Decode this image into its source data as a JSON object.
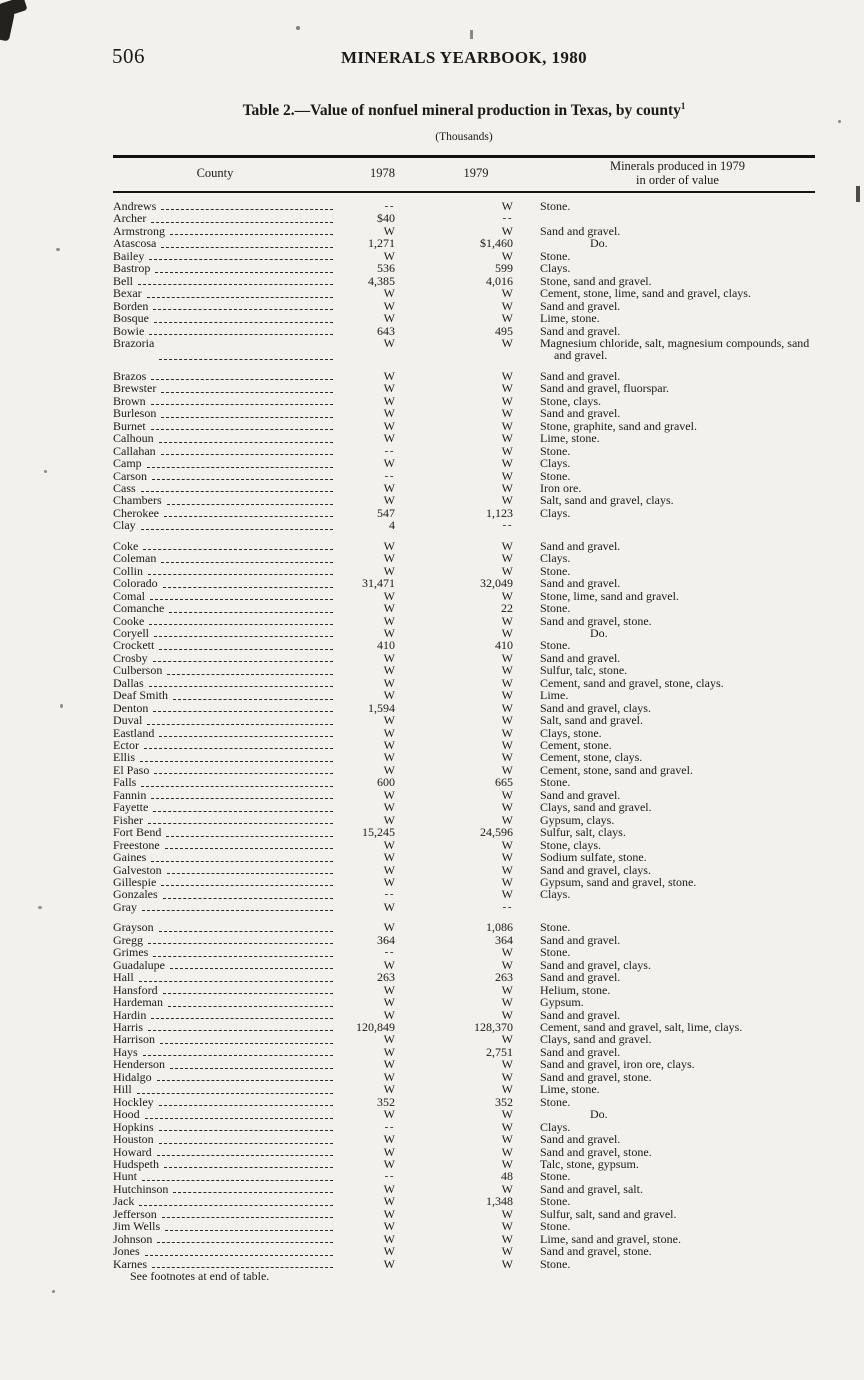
{
  "page": {
    "number": "506",
    "running_title": "MINERALS YEARBOOK, 1980",
    "footer_note": "See footnotes at end of table."
  },
  "table": {
    "title": "Table 2.—Value of nonfuel mineral production in Texas, by county",
    "title_footnote_marker": "1",
    "subtitle": "(Thousands)",
    "columns": [
      "County",
      "1978",
      "1979"
    ],
    "minerals_header": [
      "Minerals produced in 1979",
      "in order of value"
    ],
    "withheld_symbol": "W",
    "no_data_symbol": "--",
    "rows": [
      {
        "county": "Andrews",
        "y1978": "--",
        "y1979": "W",
        "minerals": "Stone."
      },
      {
        "county": "Archer",
        "y1978": "$40",
        "y1979": "--",
        "minerals": ""
      },
      {
        "county": "Armstrong",
        "y1978": "W",
        "y1979": "W",
        "minerals": "Sand and gravel."
      },
      {
        "county": "Atascosa",
        "y1978": "1,271",
        "y1979": "$1,460",
        "minerals": "Do."
      },
      {
        "county": "Bailey",
        "y1978": "W",
        "y1979": "W",
        "minerals": "Stone."
      },
      {
        "county": "Bastrop",
        "y1978": "536",
        "y1979": "599",
        "minerals": "Clays."
      },
      {
        "county": "Bell",
        "y1978": "4,385",
        "y1979": "4,016",
        "minerals": "Stone, sand and gravel."
      },
      {
        "county": "Bexar",
        "y1978": "W",
        "y1979": "W",
        "minerals": "Cement, stone, lime, sand and gravel, clays."
      },
      {
        "county": "Borden",
        "y1978": "W",
        "y1979": "W",
        "minerals": "Sand and gravel."
      },
      {
        "county": "Bosque",
        "y1978": "W",
        "y1979": "W",
        "minerals": "Lime, stone."
      },
      {
        "county": "Bowie",
        "y1978": "643",
        "y1979": "495",
        "minerals": "Sand and gravel."
      },
      {
        "county": "Brazoria",
        "y1978": "W",
        "y1979": "W",
        "minerals": "Magnesium chloride, salt, magnesium compounds, sand and gravel."
      },
      {
        "county": "Brazos",
        "y1978": "W",
        "y1979": "W",
        "minerals": "Sand and gravel.",
        "gap": true
      },
      {
        "county": "Brewster",
        "y1978": "W",
        "y1979": "W",
        "minerals": "Sand and gravel, fluorspar."
      },
      {
        "county": "Brown",
        "y1978": "W",
        "y1979": "W",
        "minerals": "Stone, clays."
      },
      {
        "county": "Burleson",
        "y1978": "W",
        "y1979": "W",
        "minerals": "Sand and gravel."
      },
      {
        "county": "Burnet",
        "y1978": "W",
        "y1979": "W",
        "minerals": "Stone, graphite, sand and gravel."
      },
      {
        "county": "Calhoun",
        "y1978": "W",
        "y1979": "W",
        "minerals": "Lime, stone."
      },
      {
        "county": "Callahan",
        "y1978": "--",
        "y1979": "W",
        "minerals": "Stone."
      },
      {
        "county": "Camp",
        "y1978": "W",
        "y1979": "W",
        "minerals": "Clays."
      },
      {
        "county": "Carson",
        "y1978": "--",
        "y1979": "W",
        "minerals": "Stone."
      },
      {
        "county": "Cass",
        "y1978": "W",
        "y1979": "W",
        "minerals": "Iron ore."
      },
      {
        "county": "Chambers",
        "y1978": "W",
        "y1979": "W",
        "minerals": "Salt, sand and gravel, clays."
      },
      {
        "county": "Cherokee",
        "y1978": "547",
        "y1979": "1,123",
        "minerals": "Clays."
      },
      {
        "county": "Clay",
        "y1978": "4",
        "y1979": "--",
        "minerals": ""
      },
      {
        "county": "Coke",
        "y1978": "W",
        "y1979": "W",
        "minerals": "Sand and gravel.",
        "gap": true
      },
      {
        "county": "Coleman",
        "y1978": "W",
        "y1979": "W",
        "minerals": "Clays."
      },
      {
        "county": "Collin",
        "y1978": "W",
        "y1979": "W",
        "minerals": "Stone."
      },
      {
        "county": "Colorado",
        "y1978": "31,471",
        "y1979": "32,049",
        "minerals": "Sand and gravel."
      },
      {
        "county": "Comal",
        "y1978": "W",
        "y1979": "W",
        "minerals": "Stone, lime, sand and gravel."
      },
      {
        "county": "Comanche",
        "y1978": "W",
        "y1979": "22",
        "minerals": "Stone."
      },
      {
        "county": "Cooke",
        "y1978": "W",
        "y1979": "W",
        "minerals": "Sand and gravel, stone."
      },
      {
        "county": "Coryell",
        "y1978": "W",
        "y1979": "W",
        "minerals": "Do."
      },
      {
        "county": "Crockett",
        "y1978": "410",
        "y1979": "410",
        "minerals": "Stone."
      },
      {
        "county": "Crosby",
        "y1978": "W",
        "y1979": "W",
        "minerals": "Sand and gravel."
      },
      {
        "county": "Culberson",
        "y1978": "W",
        "y1979": "W",
        "minerals": "Sulfur, talc, stone."
      },
      {
        "county": "Dallas",
        "y1978": "W",
        "y1979": "W",
        "minerals": "Cement, sand and gravel, stone, clays."
      },
      {
        "county": "Deaf Smith",
        "y1978": "W",
        "y1979": "W",
        "minerals": "Lime."
      },
      {
        "county": "Denton",
        "y1978": "1,594",
        "y1979": "W",
        "minerals": "Sand and gravel, clays."
      },
      {
        "county": "Duval",
        "y1978": "W",
        "y1979": "W",
        "minerals": "Salt, sand and gravel."
      },
      {
        "county": "Eastland",
        "y1978": "W",
        "y1979": "W",
        "minerals": "Clays, stone."
      },
      {
        "county": "Ector",
        "y1978": "W",
        "y1979": "W",
        "minerals": "Cement, stone."
      },
      {
        "county": "Ellis",
        "y1978": "W",
        "y1979": "W",
        "minerals": "Cement, stone, clays."
      },
      {
        "county": "El Paso",
        "y1978": "W",
        "y1979": "W",
        "minerals": "Cement, stone, sand and gravel."
      },
      {
        "county": "Falls",
        "y1978": "600",
        "y1979": "665",
        "minerals": "Stone."
      },
      {
        "county": "Fannin",
        "y1978": "W",
        "y1979": "W",
        "minerals": "Sand and gravel."
      },
      {
        "county": "Fayette",
        "y1978": "W",
        "y1979": "W",
        "minerals": "Clays, sand and gravel."
      },
      {
        "county": "Fisher",
        "y1978": "W",
        "y1979": "W",
        "minerals": "Gypsum, clays."
      },
      {
        "county": "Fort Bend",
        "y1978": "15,245",
        "y1979": "24,596",
        "minerals": "Sulfur, salt, clays."
      },
      {
        "county": "Freestone",
        "y1978": "W",
        "y1979": "W",
        "minerals": "Stone, clays."
      },
      {
        "county": "Gaines",
        "y1978": "W",
        "y1979": "W",
        "minerals": "Sodium sulfate, stone."
      },
      {
        "county": "Galveston",
        "y1978": "W",
        "y1979": "W",
        "minerals": "Sand and gravel, clays."
      },
      {
        "county": "Gillespie",
        "y1978": "W",
        "y1979": "W",
        "minerals": "Gypsum, sand and gravel, stone."
      },
      {
        "county": "Gonzales",
        "y1978": "--",
        "y1979": "W",
        "minerals": "Clays."
      },
      {
        "county": "Gray",
        "y1978": "W",
        "y1979": "--",
        "minerals": ""
      },
      {
        "county": "Grayson",
        "y1978": "W",
        "y1979": "1,086",
        "minerals": "Stone.",
        "gap": true
      },
      {
        "county": "Gregg",
        "y1978": "364",
        "y1979": "364",
        "minerals": "Sand and gravel."
      },
      {
        "county": "Grimes",
        "y1978": "--",
        "y1979": "W",
        "minerals": "Stone."
      },
      {
        "county": "Guadalupe",
        "y1978": "W",
        "y1979": "W",
        "minerals": "Sand and gravel, clays."
      },
      {
        "county": "Hall",
        "y1978": "263",
        "y1979": "263",
        "minerals": "Sand and gravel."
      },
      {
        "county": "Hansford",
        "y1978": "W",
        "y1979": "W",
        "minerals": "Helium, stone."
      },
      {
        "county": "Hardeman",
        "y1978": "W",
        "y1979": "W",
        "minerals": "Gypsum."
      },
      {
        "county": "Hardin",
        "y1978": "W",
        "y1979": "W",
        "minerals": "Sand and gravel."
      },
      {
        "county": "Harris",
        "y1978": "120,849",
        "y1979": "128,370",
        "minerals": "Cement, sand and gravel, salt, lime, clays."
      },
      {
        "county": "Harrison",
        "y1978": "W",
        "y1979": "W",
        "minerals": "Clays, sand and gravel."
      },
      {
        "county": "Hays",
        "y1978": "W",
        "y1979": "2,751",
        "minerals": "Sand and gravel."
      },
      {
        "county": "Henderson",
        "y1978": "W",
        "y1979": "W",
        "minerals": "Sand and gravel, iron ore, clays."
      },
      {
        "county": "Hidalgo",
        "y1978": "W",
        "y1979": "W",
        "minerals": "Sand and gravel, stone."
      },
      {
        "county": "Hill",
        "y1978": "W",
        "y1979": "W",
        "minerals": "Lime, stone."
      },
      {
        "county": "Hockley",
        "y1978": "352",
        "y1979": "352",
        "minerals": "Stone."
      },
      {
        "county": "Hood",
        "y1978": "W",
        "y1979": "W",
        "minerals": "Do."
      },
      {
        "county": "Hopkins",
        "y1978": "--",
        "y1979": "W",
        "minerals": "Clays."
      },
      {
        "county": "Houston",
        "y1978": "W",
        "y1979": "W",
        "minerals": "Sand and gravel."
      },
      {
        "county": "Howard",
        "y1978": "W",
        "y1979": "W",
        "minerals": "Sand and gravel, stone."
      },
      {
        "county": "Hudspeth",
        "y1978": "W",
        "y1979": "W",
        "minerals": "Talc, stone, gypsum."
      },
      {
        "county": "Hunt",
        "y1978": "--",
        "y1979": "48",
        "minerals": "Stone."
      },
      {
        "county": "Hutchinson",
        "y1978": "W",
        "y1979": "W",
        "minerals": "Sand and gravel, salt."
      },
      {
        "county": "Jack",
        "y1978": "W",
        "y1979": "1,348",
        "minerals": "Stone."
      },
      {
        "county": "Jefferson",
        "y1978": "W",
        "y1979": "W",
        "minerals": "Sulfur, salt, sand and gravel."
      },
      {
        "county": "Jim Wells",
        "y1978": "W",
        "y1979": "W",
        "minerals": "Stone."
      },
      {
        "county": "Johnson",
        "y1978": "W",
        "y1979": "W",
        "minerals": "Lime, sand and gravel, stone."
      },
      {
        "county": "Jones",
        "y1978": "W",
        "y1979": "W",
        "minerals": "Sand and gravel, stone."
      },
      {
        "county": "Karnes",
        "y1978": "W",
        "y1979": "W",
        "minerals": "Stone."
      }
    ]
  },
  "colors": {
    "paper": "#f2f1ed",
    "ink": "#1b1a18"
  }
}
